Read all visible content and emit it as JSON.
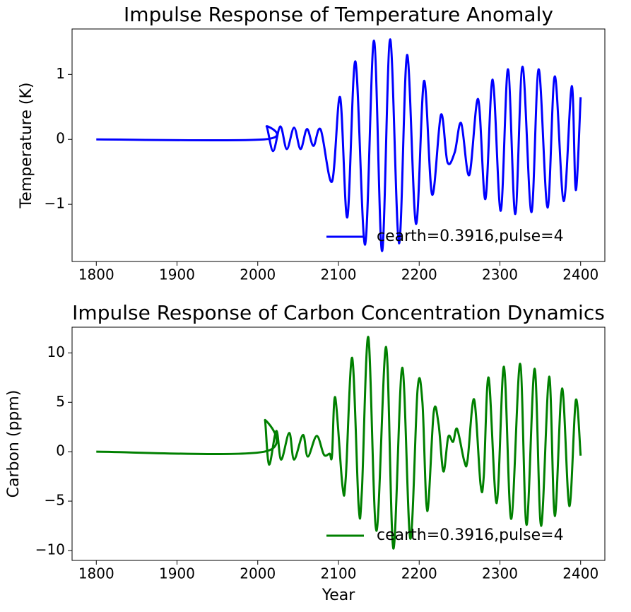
{
  "chart_data": [
    {
      "type": "line",
      "title": "Impulse Response of Temperature Anomaly",
      "y_label": "Temperature (K)",
      "x": [
        1800,
        2008,
        2011,
        2019,
        2028,
        2036,
        2045,
        2053,
        2061,
        2069,
        2078,
        2092,
        2102,
        2111,
        2121,
        2133,
        2144,
        2154,
        2164,
        2175,
        2185,
        2196,
        2206,
        2216,
        2227,
        2235,
        2244,
        2252,
        2262,
        2273,
        2282,
        2291,
        2301,
        2310,
        2319,
        2328,
        2339,
        2348,
        2359,
        2368,
        2379,
        2389,
        2394,
        2400
      ],
      "series": [
        {
          "name": "cearth=0.3916,pulse=4",
          "color": "#0000ff",
          "values": [
            0,
            0,
            0.2,
            -0.18,
            0.2,
            -0.15,
            0.18,
            -0.15,
            0.16,
            -0.1,
            0.15,
            -0.65,
            0.65,
            -1.2,
            1.2,
            -1.62,
            1.52,
            -1.72,
            1.54,
            -1.6,
            1.3,
            -1.3,
            0.9,
            -0.85,
            0.38,
            -0.35,
            -0.2,
            0.25,
            -0.55,
            0.62,
            -0.92,
            0.92,
            -1.1,
            1.08,
            -1.15,
            1.12,
            -1.12,
            1.08,
            -1.05,
            0.97,
            -0.95,
            0.82,
            -0.78,
            0.65
          ]
        }
      ],
      "xlim": [
        1770,
        2430
      ],
      "xticks": [
        1800,
        1900,
        2000,
        2100,
        2200,
        2300,
        2400
      ],
      "ylim": [
        -1.88,
        1.7
      ],
      "yticks": [
        {
          "value": -1,
          "label": "−1"
        },
        0,
        1
      ],
      "legend": "lower right"
    },
    {
      "type": "line",
      "title": "Impulse Response of Carbon Concentration Dynamics",
      "x_label": "Year",
      "y_label": "Carbon (ppm)",
      "x": [
        1800,
        2008,
        2009,
        2014,
        2023,
        2029,
        2039,
        2045,
        2056,
        2062,
        2073,
        2082,
        2089,
        2092,
        2096,
        2105,
        2109,
        2117,
        2125,
        2129,
        2137,
        2147,
        2159,
        2168,
        2179,
        2189,
        2198,
        2204,
        2210,
        2218,
        2224,
        2230,
        2236,
        2242,
        2247,
        2256,
        2260,
        2268,
        2276,
        2280,
        2286,
        2296,
        2305,
        2314,
        2325,
        2333,
        2343,
        2351,
        2361,
        2368,
        2377,
        2386,
        2394,
        2400
      ],
      "series": [
        {
          "name": "cearth=0.3916,pulse=4",
          "color": "#008000",
          "values": [
            0,
            0,
            3.2,
            -1.3,
            2.1,
            -0.8,
            1.9,
            -0.8,
            1.7,
            -0.5,
            1.6,
            -0.3,
            -0.2,
            -0.4,
            5.5,
            -3.5,
            -2.7,
            9.5,
            -5.5,
            -4,
            11.6,
            -8,
            10.6,
            -9.8,
            8.5,
            -8.8,
            6.3,
            5,
            -6,
            4,
            2.8,
            -2,
            1.5,
            1,
            2.3,
            -1,
            -0.8,
            5.3,
            -3.3,
            -2.5,
            7.5,
            -5.2,
            8.6,
            -6.8,
            8.9,
            -7.4,
            8.4,
            -7.5,
            7.6,
            -6.5,
            6.4,
            -5.5,
            5.2,
            -0.4
          ]
        }
      ],
      "xlim": [
        1770,
        2430
      ],
      "xticks": [
        1800,
        1900,
        2000,
        2100,
        2200,
        2300,
        2400
      ],
      "ylim": [
        -11,
        12.6
      ],
      "yticks": [
        {
          "value": -10,
          "label": "−10"
        },
        {
          "value": -5,
          "label": "−5"
        },
        0,
        5,
        10
      ],
      "legend": "lower right"
    }
  ]
}
